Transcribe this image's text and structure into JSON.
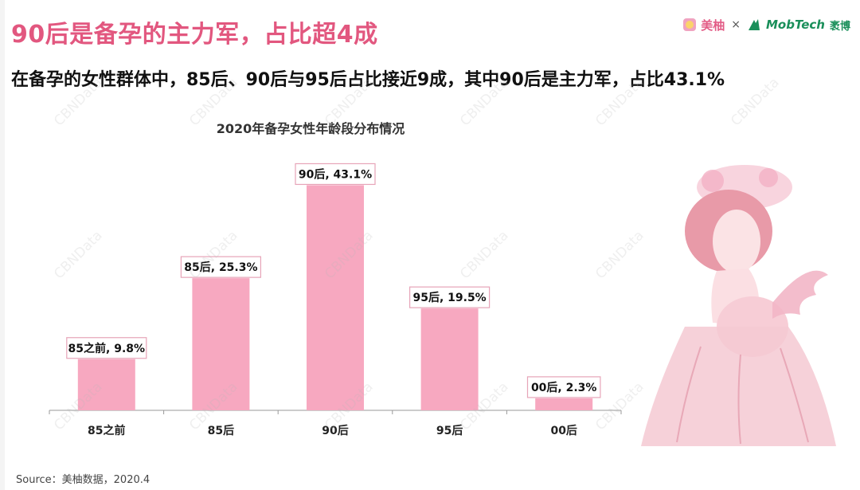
{
  "header": {
    "title": "90后是备孕的主力军，占比超4成",
    "subtitle": "在备孕的女性群体中，85后、90后与95后占比接近9成，其中90后是主力军，占比43.1%"
  },
  "logos": {
    "brand1": "美柚",
    "separator": "×",
    "brand2": "MobTech",
    "brand2_cn": "袤博"
  },
  "watermark_text": "CBNData",
  "chart_data": {
    "type": "bar",
    "title": "2020年备孕女性年龄段分布情况",
    "categories": [
      "85之前",
      "85后",
      "90后",
      "95后",
      "00后"
    ],
    "values": [
      9.8,
      25.3,
      43.1,
      19.5,
      2.3
    ],
    "data_labels": [
      "85之前, 9.8%",
      "85后, 25.3%",
      "90后, 43.1%",
      "95后, 19.5%",
      "00后, 2.3%"
    ],
    "unit": "%",
    "ylim": [
      0,
      45
    ],
    "grid": false,
    "legend": "none",
    "bar_color": "#f7a8c0"
  },
  "footer": {
    "source": "Source：美柚数据，2020.4"
  }
}
